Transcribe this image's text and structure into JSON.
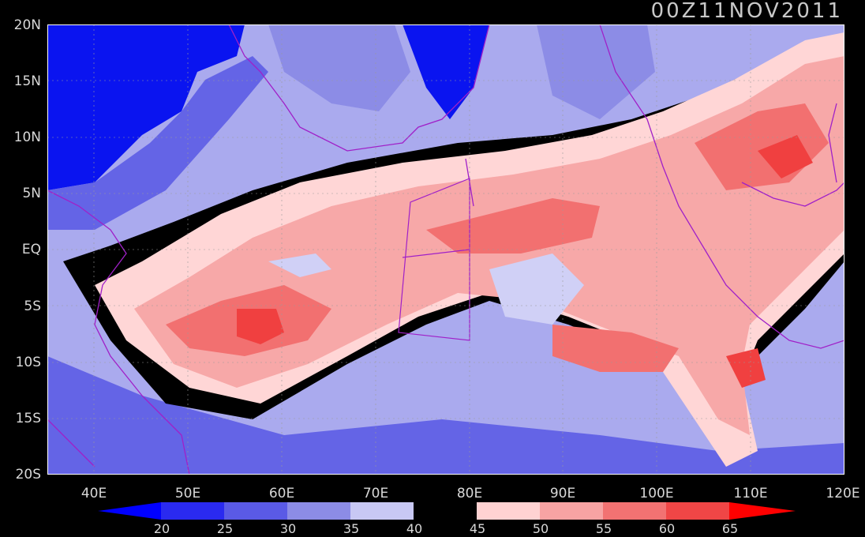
{
  "timestamp": "00Z11NOV2011",
  "lat_labels": [
    "20N",
    "15N",
    "10N",
    "5N",
    "EQ",
    "5S",
    "10S",
    "15S",
    "20S"
  ],
  "lon_labels": [
    "40E",
    "50E",
    "60E",
    "70E",
    "80E",
    "90E",
    "100E",
    "110E",
    "120E"
  ],
  "colorbar": {
    "levels": [
      "20",
      "25",
      "30",
      "35",
      "40",
      "45",
      "50",
      "55",
      "60",
      "65"
    ],
    "colors": [
      "#0000ff",
      "#2a2af0",
      "#5a5ae6",
      "#8c8ce6",
      "#c8c8f4",
      "#000000",
      "#ffd2d2",
      "#f7a3a3",
      "#f27272",
      "#f04646",
      "#ff0000"
    ]
  },
  "colors": {
    "deep_blue": "#0a14f0",
    "mid_blue": "#6464e6",
    "light_blue": "#aaaaee",
    "pale_blue": "#d0d0f6",
    "black": "#000000",
    "pale_red": "#ffd6d6",
    "light_red": "#f7a8a8",
    "mid_red": "#f27070",
    "red": "#f04040",
    "coast": "#a020c8"
  }
}
